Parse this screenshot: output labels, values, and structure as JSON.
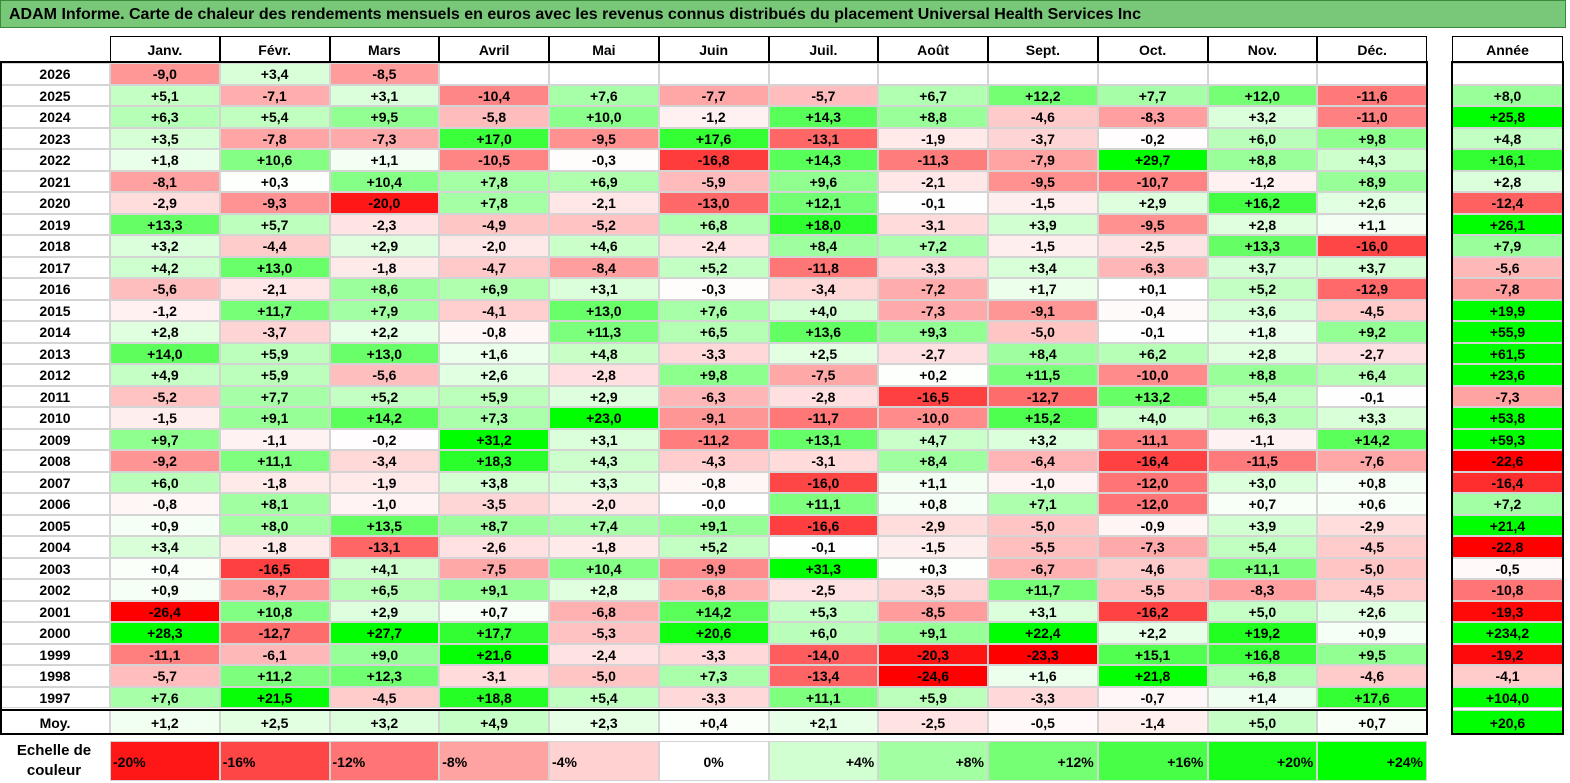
{
  "title": "ADAM Informe. Carte de chaleur des rendements mensuels en euros avec les revenus connus distribués du placement Universal Health Services Inc",
  "annual_header": "Année",
  "average_label": "Moy.",
  "legend_title": "Echelle de couleur",
  "legend": [
    "-20%",
    "-16%",
    "-12%",
    "-8%",
    "-4%",
    "0%",
    "+4%",
    "+8%",
    "+12%",
    "+16%",
    "+20%",
    "+24%"
  ],
  "colors": {
    "negative": "#ff0000",
    "positive": "#00ff00",
    "neutral": "#ffffff",
    "title_bg": "#79c879"
  },
  "chart_data": {
    "type": "heatmap",
    "months": [
      "Janv.",
      "Févr.",
      "Mars",
      "Avril",
      "Mai",
      "Juin",
      "Juil.",
      "Août",
      "Sept.",
      "Oct.",
      "Nov.",
      "Déc."
    ],
    "rows": [
      {
        "year": "2026",
        "values": [
          "-9,0",
          "+3,4",
          "-8,5",
          "",
          "",
          "",
          "",
          "",
          "",
          "",
          "",
          ""
        ],
        "annual": ""
      },
      {
        "year": "2025",
        "values": [
          "+5,1",
          "-7,1",
          "+3,1",
          "-10,4",
          "+7,6",
          "-7,7",
          "-5,7",
          "+6,7",
          "+12,2",
          "+7,7",
          "+12,0",
          "-11,6"
        ],
        "annual": "+8,0"
      },
      {
        "year": "2024",
        "values": [
          "+6,3",
          "+5,4",
          "+9,5",
          "-5,8",
          "+10,0",
          "-1,2",
          "+14,3",
          "+8,8",
          "-4,6",
          "-8,3",
          "+3,2",
          "-11,0"
        ],
        "annual": "+25,8"
      },
      {
        "year": "2023",
        "values": [
          "+3,5",
          "-7,8",
          "-7,3",
          "+17,0",
          "-9,5",
          "+17,6",
          "-13,1",
          "-1,9",
          "-3,7",
          "-0,2",
          "+6,0",
          "+9,8"
        ],
        "annual": "+4,8"
      },
      {
        "year": "2022",
        "values": [
          "+1,8",
          "+10,6",
          "+1,1",
          "-10,5",
          "-0,3",
          "-16,8",
          "+14,3",
          "-11,3",
          "-7,9",
          "+29,7",
          "+8,8",
          "+4,3"
        ],
        "annual": "+16,1"
      },
      {
        "year": "2021",
        "values": [
          "-8,1",
          "+0,3",
          "+10,4",
          "+7,8",
          "+6,9",
          "-5,9",
          "+9,6",
          "-2,1",
          "-9,5",
          "-10,7",
          "-1,2",
          "+8,9"
        ],
        "annual": "+2,8"
      },
      {
        "year": "2020",
        "values": [
          "-2,9",
          "-9,3",
          "-20,0",
          "+7,8",
          "-2,1",
          "-13,0",
          "+12,1",
          "-0,1",
          "-1,5",
          "+2,9",
          "+16,2",
          "+2,6"
        ],
        "annual": "-12,4"
      },
      {
        "year": "2019",
        "values": [
          "+13,3",
          "+5,7",
          "-2,3",
          "-4,9",
          "-5,2",
          "+6,8",
          "+18,0",
          "-3,1",
          "+3,9",
          "-9,5",
          "+2,8",
          "+1,1"
        ],
        "annual": "+26,1"
      },
      {
        "year": "2018",
        "values": [
          "+3,2",
          "-4,4",
          "+2,9",
          "-2,0",
          "+4,6",
          "-2,4",
          "+8,4",
          "+7,2",
          "-1,5",
          "-2,5",
          "+13,3",
          "-16,0"
        ],
        "annual": "+7,9"
      },
      {
        "year": "2017",
        "values": [
          "+4,2",
          "+13,0",
          "-1,8",
          "-4,7",
          "-8,4",
          "+5,2",
          "-11,8",
          "-3,3",
          "+3,4",
          "-6,3",
          "+3,7",
          "+3,7"
        ],
        "annual": "-5,6"
      },
      {
        "year": "2016",
        "values": [
          "-5,6",
          "-2,1",
          "+8,6",
          "+6,9",
          "+3,1",
          "-0,3",
          "-3,4",
          "-7,2",
          "+1,7",
          "+0,1",
          "+5,2",
          "-12,9"
        ],
        "annual": "-7,8"
      },
      {
        "year": "2015",
        "values": [
          "-1,2",
          "+11,7",
          "+7,9",
          "-4,1",
          "+13,0",
          "+7,6",
          "+4,0",
          "-7,3",
          "-9,1",
          "-0,4",
          "+3,6",
          "-4,5"
        ],
        "annual": "+19,9"
      },
      {
        "year": "2014",
        "values": [
          "+2,8",
          "-3,7",
          "+2,2",
          "-0,8",
          "+11,3",
          "+6,5",
          "+13,6",
          "+9,3",
          "-5,0",
          "-0,1",
          "+1,8",
          "+9,2"
        ],
        "annual": "+55,9"
      },
      {
        "year": "2013",
        "values": [
          "+14,0",
          "+5,9",
          "+13,0",
          "+1,6",
          "+4,8",
          "-3,3",
          "+2,5",
          "-2,7",
          "+8,4",
          "+6,2",
          "+2,8",
          "-2,7"
        ],
        "annual": "+61,5"
      },
      {
        "year": "2012",
        "values": [
          "+4,9",
          "+5,9",
          "-5,6",
          "+2,6",
          "-2,8",
          "+9,8",
          "-7,5",
          "+0,2",
          "+11,5",
          "-10,0",
          "+8,8",
          "+6,4"
        ],
        "annual": "+23,6"
      },
      {
        "year": "2011",
        "values": [
          "-5,2",
          "+7,7",
          "+5,2",
          "+5,9",
          "+2,9",
          "-6,3",
          "-2,8",
          "-16,5",
          "-12,7",
          "+13,2",
          "+5,4",
          "-0,1"
        ],
        "annual": "-7,3"
      },
      {
        "year": "2010",
        "values": [
          "-1,5",
          "+9,1",
          "+14,2",
          "+7,3",
          "+23,0",
          "-9,1",
          "-11,7",
          "-10,0",
          "+15,2",
          "+4,0",
          "+6,3",
          "+3,3"
        ],
        "annual": "+53,8"
      },
      {
        "year": "2009",
        "values": [
          "+9,7",
          "-1,1",
          "-0,2",
          "+31,2",
          "+3,1",
          "-11,2",
          "+13,1",
          "+4,7",
          "+3,2",
          "-11,1",
          "-1,1",
          "+14,2"
        ],
        "annual": "+59,3"
      },
      {
        "year": "2008",
        "values": [
          "-9,2",
          "+11,1",
          "-3,4",
          "+18,3",
          "+4,3",
          "-4,3",
          "-3,1",
          "+8,4",
          "-6,4",
          "-16,4",
          "-11,5",
          "-7,6"
        ],
        "annual": "-22,6"
      },
      {
        "year": "2007",
        "values": [
          "+6,0",
          "-1,8",
          "-1,9",
          "+3,8",
          "+3,3",
          "-0,8",
          "-16,0",
          "+1,1",
          "-1,0",
          "-12,0",
          "+3,0",
          "+0,8"
        ],
        "annual": "-16,4"
      },
      {
        "year": "2006",
        "values": [
          "-0,8",
          "+8,1",
          "-1,0",
          "-3,5",
          "-2,0",
          "-0,0",
          "+11,1",
          "+0,8",
          "+7,1",
          "-12,0",
          "+0,7",
          "+0,6"
        ],
        "annual": "+7,2"
      },
      {
        "year": "2005",
        "values": [
          "+0,9",
          "+8,0",
          "+13,5",
          "+8,7",
          "+7,4",
          "+9,1",
          "-16,6",
          "-2,9",
          "-5,0",
          "-0,9",
          "+3,9",
          "-2,9"
        ],
        "annual": "+21,4"
      },
      {
        "year": "2004",
        "values": [
          "+3,4",
          "-1,8",
          "-13,1",
          "-2,6",
          "-1,8",
          "+5,2",
          "-0,1",
          "-1,5",
          "-5,5",
          "-7,3",
          "+5,4",
          "-4,5"
        ],
        "annual": "-22,8"
      },
      {
        "year": "2003",
        "values": [
          "+0,4",
          "-16,5",
          "+4,1",
          "-7,5",
          "+10,4",
          "-9,9",
          "+31,3",
          "+0,3",
          "-6,7",
          "-4,6",
          "+11,1",
          "-5,0"
        ],
        "annual": "-0,5"
      },
      {
        "year": "2002",
        "values": [
          "+0,9",
          "-8,7",
          "+6,5",
          "+9,1",
          "+2,8",
          "-6,8",
          "-2,5",
          "-3,5",
          "+11,7",
          "-5,5",
          "-8,3",
          "-4,5"
        ],
        "annual": "-10,8"
      },
      {
        "year": "2001",
        "values": [
          "-26,4",
          "+10,8",
          "+2,9",
          "+0,7",
          "-6,8",
          "+14,2",
          "+5,3",
          "-8,5",
          "+3,1",
          "-16,2",
          "+5,0",
          "+2,6"
        ],
        "annual": "-19,3"
      },
      {
        "year": "2000",
        "values": [
          "+28,3",
          "-12,7",
          "+27,7",
          "+17,7",
          "-5,3",
          "+20,6",
          "+6,0",
          "+9,1",
          "+22,4",
          "+2,2",
          "+19,2",
          "+0,9"
        ],
        "annual": "+234,2"
      },
      {
        "year": "1999",
        "values": [
          "-11,1",
          "-6,1",
          "+9,0",
          "+21,6",
          "-2,4",
          "-3,3",
          "-14,0",
          "-20,3",
          "-23,3",
          "+15,1",
          "+16,8",
          "+9,5"
        ],
        "annual": "-19,2"
      },
      {
        "year": "1998",
        "values": [
          "-5,7",
          "+11,2",
          "+12,3",
          "-3,1",
          "-5,0",
          "+7,3",
          "-13,4",
          "-24,6",
          "+1,6",
          "+21,8",
          "+6,8",
          "-4,6"
        ],
        "annual": "-4,1"
      },
      {
        "year": "1997",
        "values": [
          "+7,6",
          "+21,5",
          "-4,5",
          "+18,8",
          "+5,4",
          "-3,3",
          "+11,1",
          "+5,9",
          "-3,3",
          "-0,7",
          "+1,4",
          "+17,6"
        ],
        "annual": "+104,0"
      }
    ],
    "averages": [
      "+1,2",
      "+2,5",
      "+3,2",
      "+4,9",
      "+2,3",
      "+0,4",
      "+2,1",
      "-2,5",
      "-0,5",
      "-1,4",
      "+5,0",
      "+0,7"
    ],
    "average_annual": "+20,6"
  }
}
